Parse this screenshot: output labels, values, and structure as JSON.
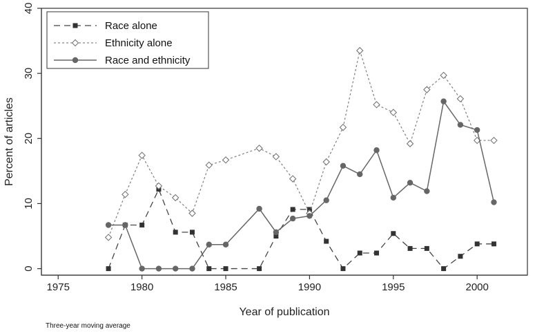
{
  "chart_data": {
    "type": "line",
    "title": "",
    "xlabel": "Year of publication",
    "ylabel": "Percent of articles",
    "note": "Three-year moving average",
    "xlim": [
      1974,
      2003
    ],
    "ylim": [
      -1,
      40
    ],
    "xticks": [
      1975,
      1980,
      1985,
      1990,
      1995,
      2000
    ],
    "yticks": [
      0,
      10,
      20,
      30,
      40
    ],
    "x": [
      1978,
      1979,
      1980,
      1981,
      1982,
      1983,
      1984,
      1985,
      1986,
      1987,
      1988,
      1989,
      1990,
      1991,
      1992,
      1993,
      1994,
      1995,
      1996,
      1997,
      1998,
      1999,
      2000,
      2001
    ],
    "legend_position": "top-left",
    "series": [
      {
        "name": "Race alone",
        "style": "dashed",
        "marker": "square",
        "color": "#444444",
        "values": [
          0,
          6.7,
          6.7,
          12.2,
          5.6,
          5.6,
          0,
          0,
          null,
          0,
          5.0,
          9.1,
          9.1,
          4.2,
          0,
          2.4,
          2.4,
          5.4,
          3.1,
          3.1,
          0,
          1.9,
          3.8,
          3.8
        ]
      },
      {
        "name": "Ethnicity alone",
        "style": "dotted",
        "marker": "diamond",
        "color": "#888888",
        "values": [
          4.8,
          11.4,
          17.4,
          12.7,
          10.9,
          8.5,
          15.9,
          16.7,
          null,
          18.5,
          17.2,
          13.8,
          8.5,
          16.4,
          21.7,
          33.5,
          25.2,
          24.0,
          19.2,
          27.5,
          29.7,
          26.1,
          19.7,
          19.7
        ]
      },
      {
        "name": "Race and ethnicity",
        "style": "solid",
        "marker": "circle",
        "color": "#666666",
        "values": [
          6.7,
          6.7,
          0,
          0,
          0,
          0,
          3.7,
          3.7,
          null,
          9.2,
          5.6,
          7.7,
          8.1,
          10.5,
          15.8,
          14.5,
          18.2,
          10.9,
          13.2,
          11.9,
          25.7,
          22.1,
          21.3,
          10.2
        ]
      }
    ]
  }
}
